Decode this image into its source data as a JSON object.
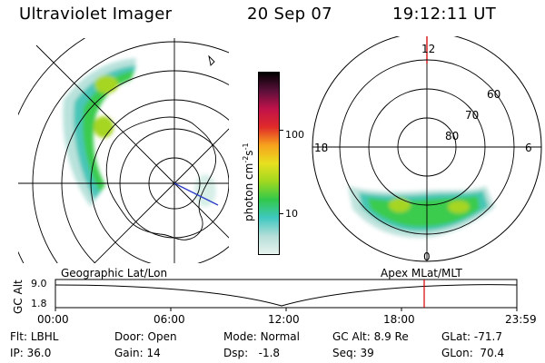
{
  "header": {
    "instrument": "Ultraviolet Imager",
    "date": "20 Sep 07",
    "time": "19:12:11 UT"
  },
  "colorbar": {
    "label_text": "photon cm",
    "label_exp1": "-2",
    "label_s": "s",
    "label_exp2": "-1",
    "ticks": [
      "100",
      "10"
    ],
    "scale": "log",
    "colors": [
      "#e8f3ee",
      "#b5ded8",
      "#3ec8c0",
      "#32c84b",
      "#a0d820",
      "#e8e020",
      "#f7a21d",
      "#e02a2a",
      "#c0124a",
      "#5a103a",
      "#000000"
    ]
  },
  "right_dial": {
    "hour_labels": [
      "12",
      "18",
      "6",
      "0"
    ],
    "lat_labels": [
      "60",
      "70",
      "80"
    ],
    "marker_color": "#d40000"
  },
  "map_labels": {
    "left": "Geographic Lat/Lon",
    "right": "Apex MLat/MLT"
  },
  "altitude_plot": {
    "axis_label": "GC Alt",
    "y_top": "9.0",
    "y_bottom": "1.8",
    "time_ticks": [
      "00:00",
      "06:00",
      "12:00",
      "18:00",
      "23:59"
    ],
    "current_time_color": "#d40000"
  },
  "info": {
    "row1": [
      {
        "label": "Flt:",
        "value": "LBHL"
      },
      {
        "label": "Door:",
        "value": "Open"
      },
      {
        "label": "Mode:",
        "value": "Normal"
      },
      {
        "label": "GC Alt:",
        "value": "8.9 Re"
      },
      {
        "label": "GLat:",
        "value": "-71.7"
      }
    ],
    "row2": [
      {
        "label": "IP:",
        "value": "36.0"
      },
      {
        "label": "Gain:",
        "value": "14"
      },
      {
        "label": "Dsp:",
        "value": "-1.8"
      },
      {
        "label": "Seq:",
        "value": "39"
      },
      {
        "label": "GLon:",
        "value": "70.4"
      }
    ]
  }
}
